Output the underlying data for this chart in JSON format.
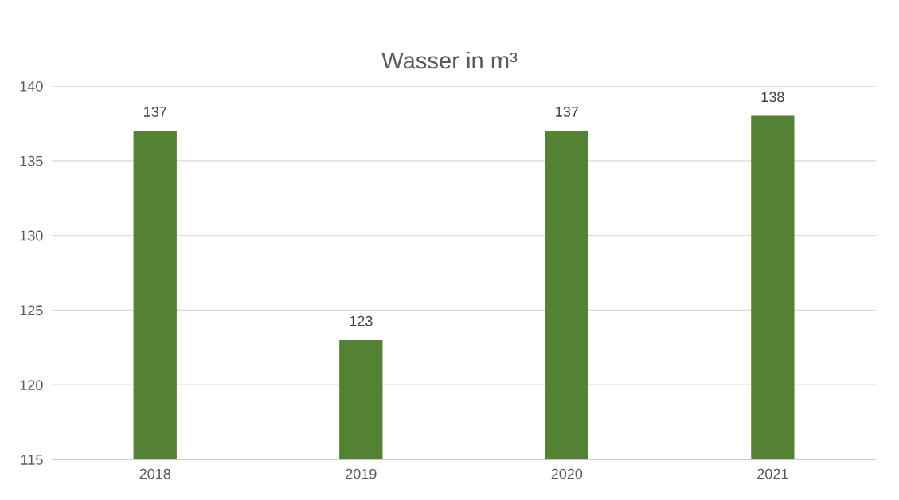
{
  "chart_data": {
    "type": "bar",
    "title": "Wasser in m³",
    "categories": [
      "2018",
      "2019",
      "2020",
      "2021"
    ],
    "values": [
      137,
      123,
      137,
      138
    ],
    "color": "#548235",
    "ylim": [
      115,
      140
    ],
    "yticks": [
      115,
      120,
      125,
      130,
      135,
      140
    ],
    "grid": "y",
    "data_labels": true
  }
}
